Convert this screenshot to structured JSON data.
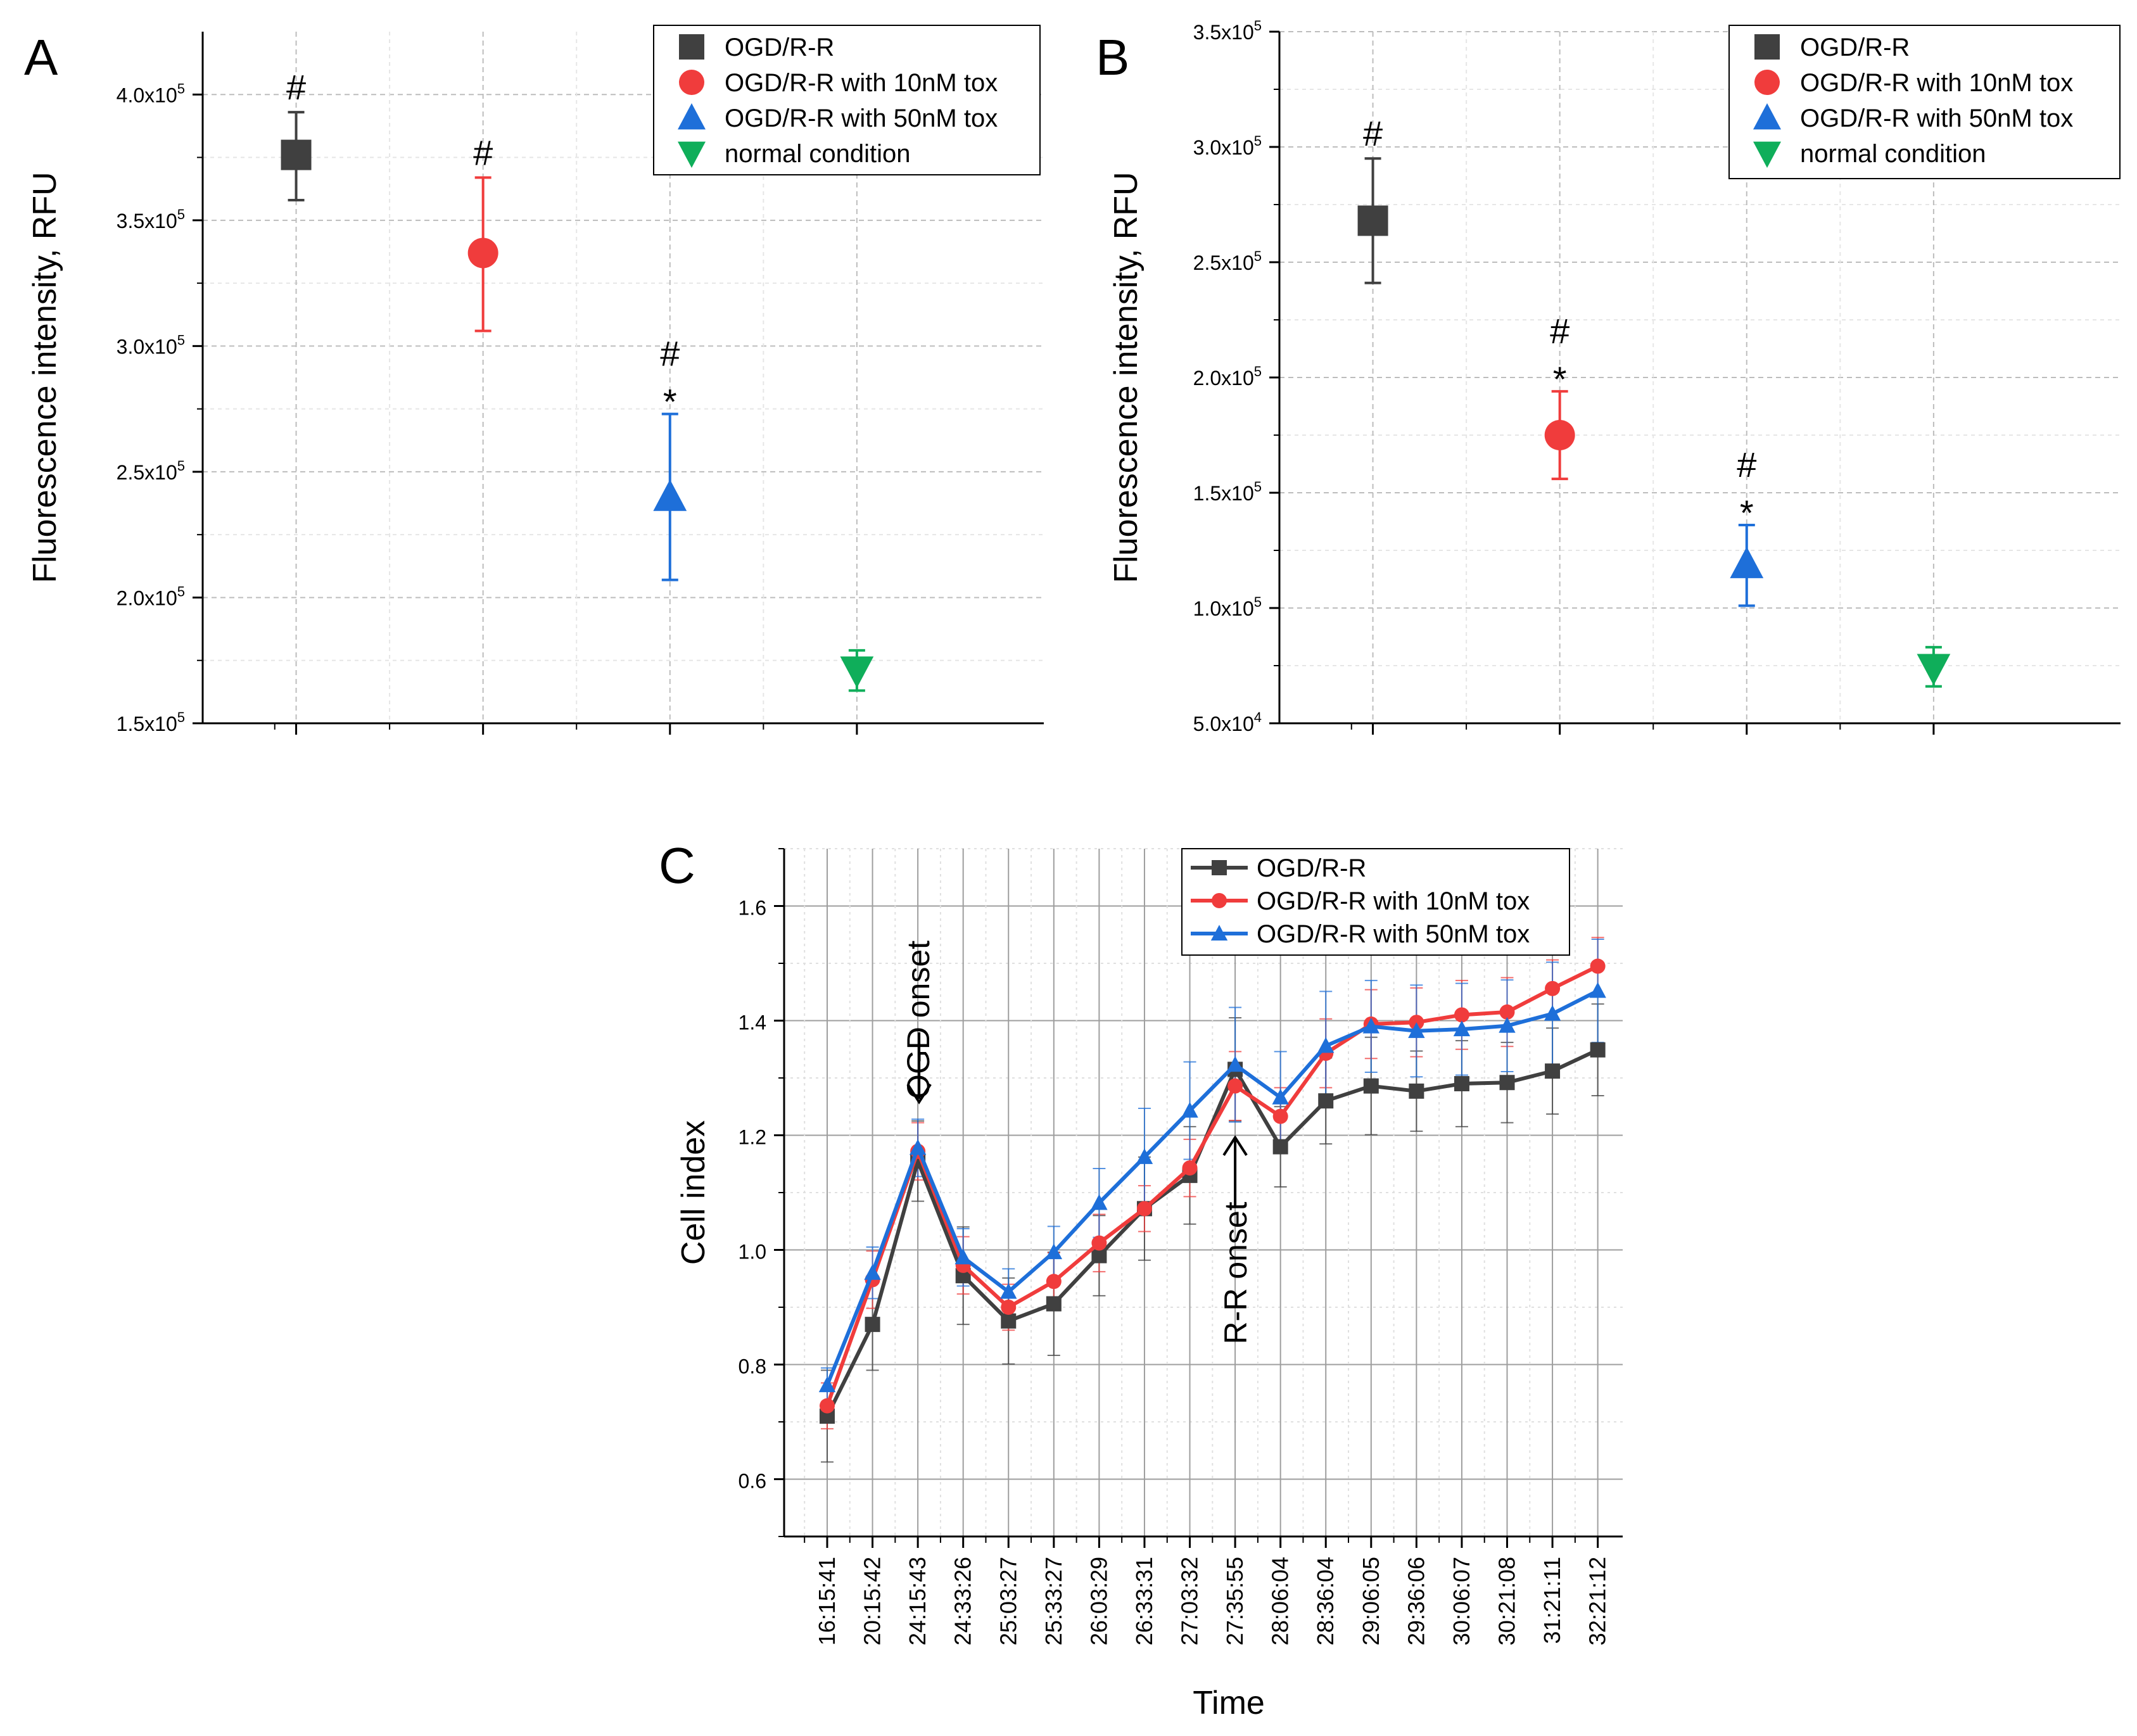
{
  "chart_data": [
    {
      "panel_label": "A",
      "type": "scatter",
      "ylabel": "Fluorescence intensity, RFU",
      "ylim": [
        150000,
        425000
      ],
      "y_ticks": [
        {
          "value": 150000,
          "label": "1.5x10",
          "exp": "5"
        },
        {
          "value": 200000,
          "label": "2.0x10",
          "exp": "5"
        },
        {
          "value": 250000,
          "label": "2.5x10",
          "exp": "5"
        },
        {
          "value": 300000,
          "label": "3.0x10",
          "exp": "5"
        },
        {
          "value": 350000,
          "label": "3.5x10",
          "exp": "5"
        },
        {
          "value": 400000,
          "label": "4.0x10",
          "exp": "5"
        }
      ],
      "grid": true,
      "legend_position": "top-right",
      "series": [
        {
          "name": "OGD/R-R",
          "color": "#404040",
          "marker": "square",
          "value": 376000,
          "err_up": 393000,
          "err_down": 358000,
          "annotations": [
            "#"
          ]
        },
        {
          "name": "OGD/R-R with 10nM tox",
          "color": "#f03c3c",
          "marker": "circle",
          "value": 337000,
          "err_up": 367000,
          "err_down": 306000,
          "annotations": [
            "#"
          ]
        },
        {
          "name": "OGD/R-R with 50nM tox",
          "color": "#1e6fd9",
          "marker": "triangle-up",
          "value": 240000,
          "err_up": 273000,
          "err_down": 207000,
          "annotations": [
            "#",
            "*"
          ]
        },
        {
          "name": "normal condition",
          "color": "#0fae5a",
          "marker": "triangle-down",
          "value": 171000,
          "err_up": 179000,
          "err_down": 163000,
          "annotations": []
        }
      ]
    },
    {
      "panel_label": "B",
      "type": "scatter",
      "ylabel": "Fluorescence intensity, RFU",
      "ylim": [
        50000,
        350000
      ],
      "y_ticks": [
        {
          "value": 50000,
          "label": "5.0x10",
          "exp": "4"
        },
        {
          "value": 100000,
          "label": "1.0x10",
          "exp": "5"
        },
        {
          "value": 150000,
          "label": "1.5x10",
          "exp": "5"
        },
        {
          "value": 200000,
          "label": "2.0x10",
          "exp": "5"
        },
        {
          "value": 250000,
          "label": "2.5x10",
          "exp": "5"
        },
        {
          "value": 300000,
          "label": "3.0x10",
          "exp": "5"
        },
        {
          "value": 350000,
          "label": "3.5x10",
          "exp": "5"
        }
      ],
      "grid": true,
      "legend_position": "top-right",
      "series": [
        {
          "name": "OGD/R-R",
          "color": "#404040",
          "marker": "square",
          "value": 268000,
          "err_up": 295000,
          "err_down": 241000,
          "annotations": [
            "#"
          ]
        },
        {
          "name": "OGD/R-R with 10nM tox",
          "color": "#f03c3c",
          "marker": "circle",
          "value": 175000,
          "err_up": 194000,
          "err_down": 156000,
          "annotations": [
            "#",
            "*"
          ]
        },
        {
          "name": "OGD/R-R with 50nM tox",
          "color": "#1e6fd9",
          "marker": "triangle-up",
          "value": 119000,
          "err_up": 136000,
          "err_down": 101000,
          "annotations": [
            "#",
            "*"
          ]
        },
        {
          "name": "normal condition",
          "color": "#0fae5a",
          "marker": "triangle-down",
          "value": 74000,
          "err_up": 83000,
          "err_down": 66000,
          "annotations": []
        }
      ]
    },
    {
      "panel_label": "C",
      "type": "line",
      "xlabel": "Time",
      "ylabel": "Cell index",
      "ylim": [
        0.5,
        1.7
      ],
      "y_ticks": [
        0.6,
        0.8,
        1.0,
        1.2,
        1.4,
        1.6
      ],
      "y_tick_labels": [
        "0.6",
        "0.8",
        "1.0",
        "1.2",
        "1.4",
        "1.6"
      ],
      "grid": true,
      "legend_position": "top-right",
      "categories": [
        "16:15:41",
        "20:15:42",
        "24:15:43",
        "24:33:26",
        "25:03:27",
        "25:33:27",
        "26:03:29",
        "26:33:31",
        "27:03:32",
        "27:35:55",
        "28:06:04",
        "28:36:04",
        "29:06:05",
        "29:36:06",
        "30:06:07",
        "30:21:08",
        "31:21:11",
        "32:21:12"
      ],
      "annotations": [
        {
          "text": "OGD onset",
          "category_index": 2
        },
        {
          "text": "R-R onset",
          "category_index": 9
        }
      ],
      "series": [
        {
          "name": "OGD/R-R",
          "color": "#404040",
          "marker": "square",
          "values": [
            0.71,
            0.87,
            1.155,
            0.955,
            0.876,
            0.906,
            0.99,
            1.072,
            1.13,
            1.315,
            1.18,
            1.26,
            1.286,
            1.277,
            1.29,
            1.292,
            1.312,
            1.349
          ],
          "errors": [
            0.08,
            0.08,
            0.07,
            0.085,
            0.075,
            0.09,
            0.07,
            0.09,
            0.085,
            0.09,
            0.07,
            0.075,
            0.085,
            0.07,
            0.075,
            0.07,
            0.075,
            0.08
          ]
        },
        {
          "name": "OGD/R-R with 10nM tox",
          "color": "#f03c3c",
          "marker": "circle",
          "values": [
            0.728,
            0.948,
            1.172,
            0.973,
            0.9,
            0.945,
            1.012,
            1.072,
            1.143,
            1.286,
            1.233,
            1.343,
            1.394,
            1.397,
            1.41,
            1.415,
            1.456,
            1.495
          ],
          "errors": [
            0.04,
            0.05,
            0.05,
            0.05,
            0.04,
            0.05,
            0.05,
            0.04,
            0.05,
            0.06,
            0.05,
            0.06,
            0.06,
            0.06,
            0.06,
            0.06,
            0.05,
            0.05
          ]
        },
        {
          "name": "OGD/R-R with 50nM tox",
          "color": "#1e6fd9",
          "marker": "triangle-up",
          "values": [
            0.764,
            0.96,
            1.178,
            0.987,
            0.927,
            0.996,
            1.082,
            1.162,
            1.243,
            1.323,
            1.266,
            1.356,
            1.39,
            1.382,
            1.385,
            1.391,
            1.412,
            1.452
          ],
          "errors": [
            0.03,
            0.045,
            0.05,
            0.05,
            0.04,
            0.045,
            0.06,
            0.085,
            0.085,
            0.1,
            0.08,
            0.095,
            0.08,
            0.08,
            0.08,
            0.08,
            0.09,
            0.09
          ]
        }
      ]
    }
  ]
}
